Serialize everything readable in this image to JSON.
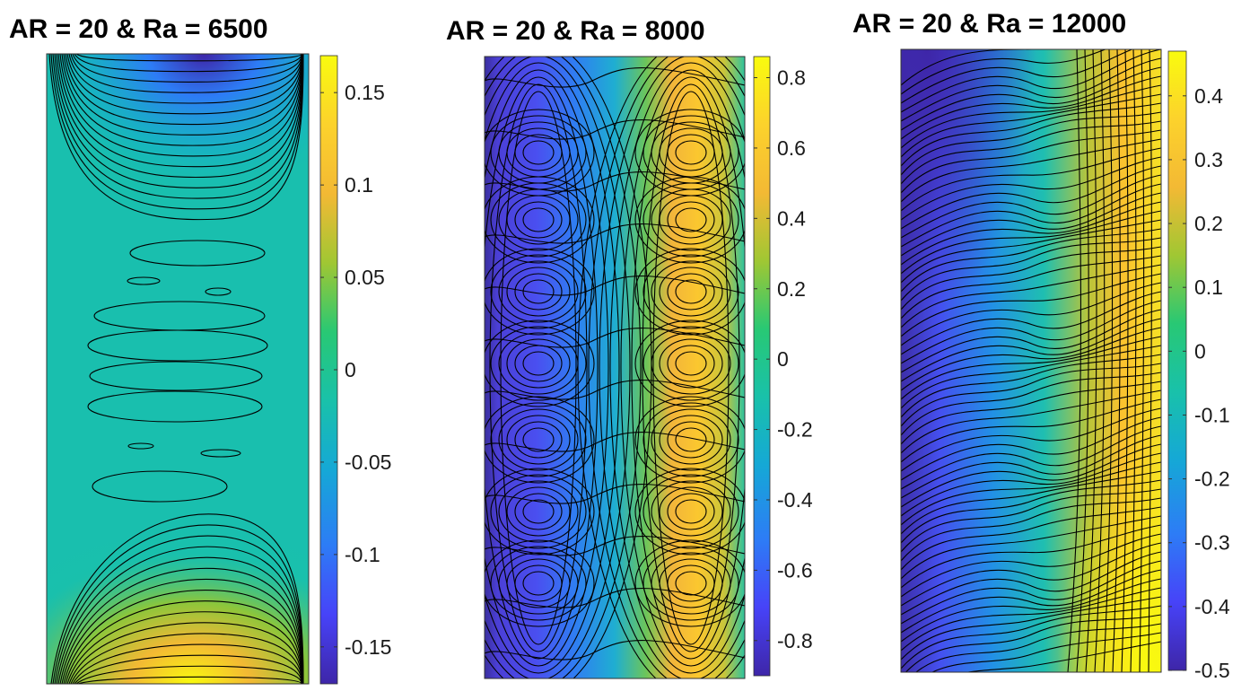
{
  "colormap": "parula",
  "colormap_stops": [
    "#3e26a8",
    "#4743f8",
    "#2d7cf6",
    "#15a8d6",
    "#19c1aa",
    "#28c874",
    "#a0c733",
    "#f3b934",
    "#fcd22c",
    "#f9fb0e"
  ],
  "chart_data": [
    {
      "type": "heatmap",
      "title": "AR = 20 & Ra = 6500",
      "field": "contour plot of flow field in cavity",
      "clim": [
        -0.17,
        0.17
      ],
      "colorbar_ticks": [
        0.15,
        0.1,
        0.05,
        0,
        -0.05,
        -0.1,
        -0.15
      ],
      "colorbar_tick_labels": [
        "0.15",
        "0.1",
        "0.05",
        "0",
        "-0.05",
        "-0.1",
        "-0.15"
      ]
    },
    {
      "type": "heatmap",
      "title": "AR = 20 & Ra = 8000",
      "field": "contour plot of flow field in cavity",
      "clim": [
        -0.9,
        0.86
      ],
      "colorbar_ticks": [
        0.8,
        0.6,
        0.4,
        0.2,
        0,
        -0.2,
        -0.4,
        -0.6,
        -0.8
      ],
      "colorbar_tick_labels": [
        "0.8",
        "0.6",
        "0.4",
        "0.2",
        "0",
        "-0.2",
        "-0.4",
        "-0.6",
        "-0.8"
      ]
    },
    {
      "type": "heatmap",
      "title": "AR = 20 & Ra = 12000",
      "field": "contour plot of flow field in cavity",
      "clim": [
        -0.5,
        0.47
      ],
      "colorbar_ticks": [
        0.4,
        0.3,
        0.2,
        0.1,
        0,
        -0.1,
        -0.2,
        -0.3,
        -0.4,
        -0.5
      ],
      "colorbar_tick_labels": [
        "0.4",
        "0.3",
        "0.2",
        "0.1",
        "0",
        "-0.1",
        "-0.2",
        "-0.3",
        "-0.4",
        "-0.5"
      ]
    }
  ]
}
